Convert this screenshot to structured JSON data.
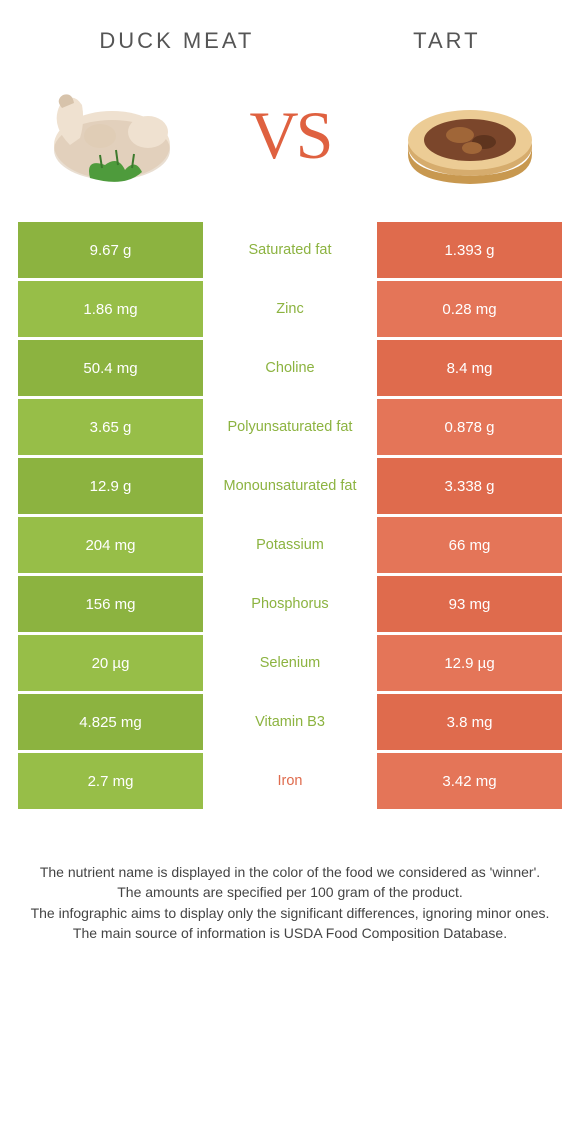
{
  "header": {
    "left_title": "Duck meat",
    "right_title": "Tart"
  },
  "hero": {
    "vs_label": "VS",
    "left_food_colors": {
      "body": "#efe1d0",
      "shade": "#d7c3ab",
      "herb": "#4e9b3c"
    },
    "right_food_colors": {
      "crust_light": "#eccc95",
      "crust_shade": "#d6ac6d",
      "filling": "#7b462b",
      "filling_light": "#a06638"
    },
    "vs_color": "#df6140"
  },
  "colors": {
    "left_odd": "#8cb340",
    "left_even": "#97be48",
    "right_odd": "#df6b4d",
    "right_even": "#e47558",
    "text": "#444444",
    "winner_left": "#8cb340",
    "winner_right": "#df6b4d"
  },
  "rows": [
    {
      "nutrient": "Saturated fat",
      "left": "9.67 g",
      "right": "1.393 g",
      "winner": "left"
    },
    {
      "nutrient": "Zinc",
      "left": "1.86 mg",
      "right": "0.28 mg",
      "winner": "left"
    },
    {
      "nutrient": "Choline",
      "left": "50.4 mg",
      "right": "8.4 mg",
      "winner": "left"
    },
    {
      "nutrient": "Polyunsaturated fat",
      "left": "3.65 g",
      "right": "0.878 g",
      "winner": "left"
    },
    {
      "nutrient": "Monounsaturated fat",
      "left": "12.9 g",
      "right": "3.338 g",
      "winner": "left"
    },
    {
      "nutrient": "Potassium",
      "left": "204 mg",
      "right": "66 mg",
      "winner": "left"
    },
    {
      "nutrient": "Phosphorus",
      "left": "156 mg",
      "right": "93 mg",
      "winner": "left"
    },
    {
      "nutrient": "Selenium",
      "left": "20 µg",
      "right": "12.9 µg",
      "winner": "left"
    },
    {
      "nutrient": "Vitamin B3",
      "left": "4.825 mg",
      "right": "3.8 mg",
      "winner": "left"
    },
    {
      "nutrient": "Iron",
      "left": "2.7 mg",
      "right": "3.42 mg",
      "winner": "right"
    }
  ],
  "footer": {
    "line1": "The nutrient name is displayed in the color of the food we considered as 'winner'.",
    "line2": "The amounts are specified per 100 gram of the product.",
    "line3": "The infographic aims to display only the significant differences, ignoring minor ones.",
    "line4": "The main source of information is USDA Food Composition Database."
  }
}
